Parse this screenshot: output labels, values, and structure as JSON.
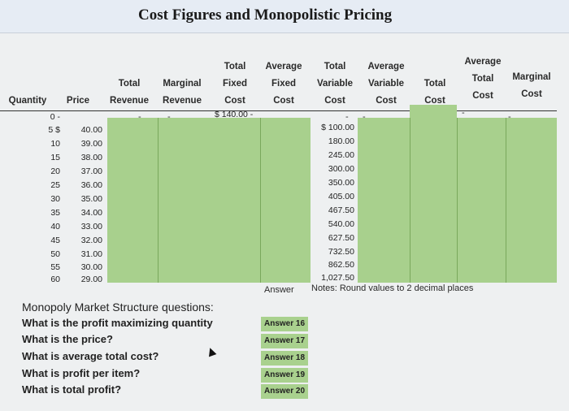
{
  "title": "Cost Figures and Monopolistic Pricing",
  "headers": {
    "quantity": "Quantity",
    "price": "Price",
    "total_revenue": [
      "Total",
      "Revenue"
    ],
    "marginal_revenue": [
      "Marginal",
      "Revenue"
    ],
    "total_fixed_cost": [
      "Total",
      "Fixed",
      "Cost"
    ],
    "average_fixed_cost": [
      "Average",
      "Fixed",
      "Cost"
    ],
    "total_variable_cost": [
      "Total",
      "Variable",
      "Cost"
    ],
    "average_variable_cost": [
      "Average",
      "Variable",
      "Cost"
    ],
    "total_cost": [
      "Total",
      "Cost"
    ],
    "average_total_cost": [
      "Average",
      "Total",
      "Cost"
    ],
    "marginal_cost": [
      "Marginal",
      "Cost"
    ]
  },
  "table": {
    "row0": {
      "qty": "0 -",
      "tfc": "$ 140.00 -",
      "tvc": "-",
      "tvc_dash2": "-",
      "tr_dash": "-",
      "mr_dash": "-",
      "atc_dash": "-",
      "mc_dash": "-"
    },
    "rows": [
      {
        "qty": "5 $",
        "price": "40.00",
        "tvc": "$ 100.00"
      },
      {
        "qty": "10",
        "price": "39.00",
        "tvc": "180.00"
      },
      {
        "qty": "15",
        "price": "38.00",
        "tvc": "245.00"
      },
      {
        "qty": "20",
        "price": "37.00",
        "tvc": "300.00"
      },
      {
        "qty": "25",
        "price": "36.00",
        "tvc": "350.00"
      },
      {
        "qty": "30",
        "price": "35.00",
        "tvc": "405.00"
      },
      {
        "qty": "35",
        "price": "34.00",
        "tvc": "467.50"
      },
      {
        "qty": "40",
        "price": "33.00",
        "tvc": "540.00"
      },
      {
        "qty": "45",
        "price": "32.00",
        "tvc": "627.50"
      },
      {
        "qty": "50",
        "price": "31.00",
        "tvc": "732.50"
      },
      {
        "qty": "55",
        "price": "30.00",
        "tvc": "862.50"
      },
      {
        "qty": "60",
        "price": "29.00",
        "tvc": "1,027.50"
      }
    ]
  },
  "answer_label": "Answer",
  "notes": "Notes: Round values to 2 decimal places",
  "questions_title": "Monopoly Market Structure questions:",
  "questions": [
    {
      "text": "What is the profit maximizing quantity",
      "answer": "Answer 16"
    },
    {
      "text": "What is the price?",
      "answer": "Answer 17"
    },
    {
      "text": "What is average total cost?",
      "answer": "Answer 18"
    },
    {
      "text": "What is profit per item?",
      "answer": "Answer 19"
    },
    {
      "text": "What is total profit?",
      "answer": "Answer 20"
    }
  ],
  "colors": {
    "answer_fill": "#a9d18e",
    "title_band": "#e6ecf4"
  }
}
